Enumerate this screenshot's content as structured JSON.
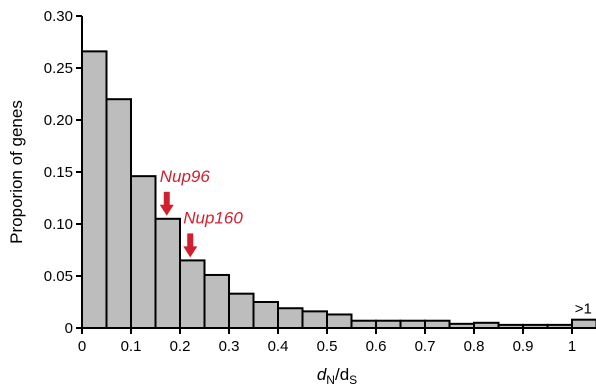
{
  "chart_data": {
    "type": "bar",
    "title": "",
    "xlabel_main": "d",
    "xlabel_sub1": "N",
    "xlabel_sep": "/d",
    "xlabel_sub2": "S",
    "ylabel": "Proporion of genes",
    "ylim": [
      0,
      0.3
    ],
    "xlim": [
      0,
      1.05
    ],
    "y_ticks": [
      "0",
      "0.05",
      "0.10",
      "0.15",
      "0.20",
      "0.25",
      "0.30"
    ],
    "x_ticks": [
      "0",
      "0.1",
      "0.2",
      "0.3",
      "0.4",
      "0.5",
      "0.6",
      "0.7",
      "0.8",
      "0.9",
      "1"
    ],
    "bin_width": 0.05,
    "bins_start": [
      0,
      0.05,
      0.1,
      0.15,
      0.2,
      0.25,
      0.3,
      0.35,
      0.4,
      0.45,
      0.5,
      0.55,
      0.6,
      0.65,
      0.7,
      0.75,
      0.8,
      0.85,
      0.9,
      0.95,
      1.0
    ],
    "values": [
      0.266,
      0.22,
      0.146,
      0.105,
      0.065,
      0.051,
      0.033,
      0.025,
      0.019,
      0.016,
      0.013,
      0.007,
      0.007,
      0.007,
      0.007,
      0.004,
      0.005,
      0.003,
      0.003,
      0.003,
      0.008
    ],
    "last_bar_label": ">1",
    "annotations": [
      {
        "text": "Nup96",
        "x": 0.175,
        "bar_value": 0.105,
        "color": "#d21f2e"
      },
      {
        "text": "Nup160",
        "x": 0.225,
        "bar_value": 0.065,
        "color": "#d21f2e"
      }
    ],
    "bar_color": "#bdbdbd"
  }
}
